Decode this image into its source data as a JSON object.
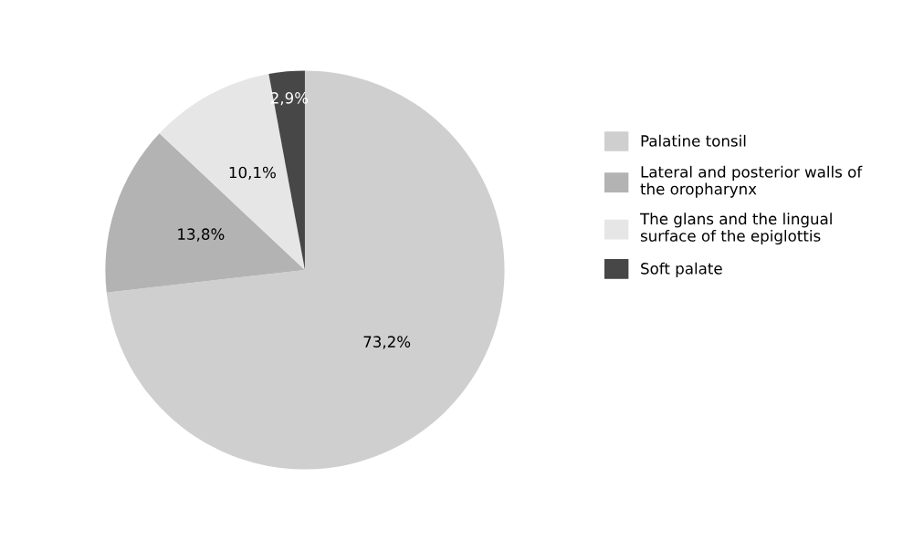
{
  "chart_data": {
    "type": "pie",
    "categories": [
      "Palatine tonsil",
      "Lateral and posterior walls of\nthe oropharynx",
      "The glans and the lingual\nsurface of the epiglottis",
      "Soft palate"
    ],
    "values": [
      73.2,
      13.8,
      10.1,
      2.9
    ],
    "value_labels": [
      "73,2%",
      "13,8%",
      "10,1%",
      "2,9%"
    ],
    "colors": [
      "#cfcfcf",
      "#b3b3b3",
      "#e6e6e6",
      "#474747"
    ],
    "legend": "right"
  }
}
